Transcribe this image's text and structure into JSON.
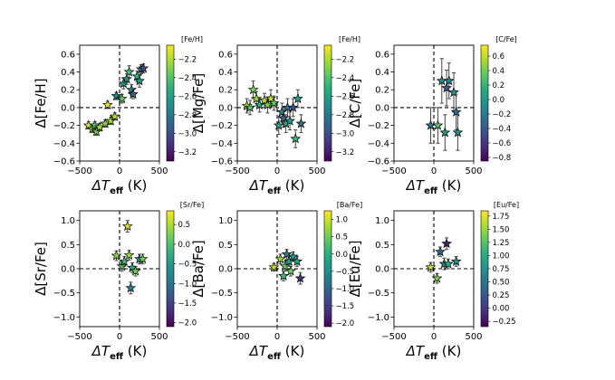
{
  "figure": {
    "colormap": "viridis"
  },
  "chart_data": [
    {
      "id": "fe_h",
      "type": "scatter",
      "ylabel_pre": "Δ[Fe/H]",
      "ylabel_main": "Δ[Fe/H]",
      "xlabel_main": "ΔT",
      "xlabel_sub": "eff",
      "xlabel_unit": " (K)",
      "xlim": [
        -500,
        500
      ],
      "ylim": [
        -0.6,
        0.7
      ],
      "xticks": [
        -500,
        0,
        500
      ],
      "yticks": [
        -0.6,
        -0.4,
        -0.2,
        0.0,
        0.2,
        0.4,
        0.6
      ],
      "ytick_labels": [
        "−0.6",
        "−0.4",
        "−0.2",
        "0.0",
        "0.2",
        "0.4",
        "0.6"
      ],
      "xtick_labels": [
        "−500",
        "0",
        "500"
      ],
      "colorbar": {
        "title": "[Fe/H]",
        "range": [
          -3.3,
          -2.05
        ],
        "ticks": [
          -3.2,
          -3.0,
          -2.8,
          -2.6,
          -2.4,
          -2.2
        ],
        "tick_labels": [
          "−3.2",
          "−3.0",
          "−2.8",
          "−2.6",
          "−2.4",
          "−2.2"
        ]
      },
      "points": [
        {
          "x": -390,
          "y": -0.2,
          "err": 0.04,
          "c": -2.15
        },
        {
          "x": -340,
          "y": -0.24,
          "err": 0.04,
          "c": -2.25
        },
        {
          "x": -310,
          "y": -0.2,
          "err": 0.04,
          "c": -2.4
        },
        {
          "x": -290,
          "y": -0.27,
          "err": 0.04,
          "c": -2.3
        },
        {
          "x": -250,
          "y": -0.22,
          "err": 0.04,
          "c": -2.2
        },
        {
          "x": -180,
          "y": -0.18,
          "err": 0.04,
          "c": -2.3
        },
        {
          "x": -150,
          "y": 0.03,
          "err": 0.04,
          "c": -2.1
        },
        {
          "x": -110,
          "y": -0.15,
          "err": 0.04,
          "c": -2.2
        },
        {
          "x": -60,
          "y": -0.1,
          "err": 0.04,
          "c": -2.2
        },
        {
          "x": -40,
          "y": 0.13,
          "err": 0.04,
          "c": -2.75
        },
        {
          "x": 30,
          "y": 0.1,
          "err": 0.05,
          "c": -2.35
        },
        {
          "x": 50,
          "y": 0.27,
          "err": 0.06,
          "c": -2.6
        },
        {
          "x": 90,
          "y": 0.32,
          "err": 0.06,
          "c": -2.65
        },
        {
          "x": 120,
          "y": 0.4,
          "err": 0.07,
          "c": -2.45
        },
        {
          "x": 150,
          "y": 0.2,
          "err": 0.06,
          "c": -2.7
        },
        {
          "x": 170,
          "y": 0.15,
          "err": 0.05,
          "c": -2.9
        },
        {
          "x": 220,
          "y": 0.35,
          "err": 0.06,
          "c": -2.5
        },
        {
          "x": 250,
          "y": 0.3,
          "err": 0.07,
          "c": -2.6
        },
        {
          "x": 270,
          "y": 0.43,
          "err": 0.05,
          "c": -2.85
        },
        {
          "x": 300,
          "y": 0.44,
          "err": 0.05,
          "c": -3.0
        }
      ]
    },
    {
      "id": "mg_fe",
      "type": "scatter",
      "ylabel_main": "Δ[Mg/Fe]",
      "xlabel_main": "ΔT",
      "xlabel_sub": "eff",
      "xlabel_unit": " (K)",
      "xlim": [
        -500,
        500
      ],
      "ylim": [
        -0.6,
        0.7
      ],
      "xticks": [
        -500,
        0,
        500
      ],
      "yticks": [
        -0.6,
        -0.4,
        -0.2,
        0.0,
        0.2,
        0.4,
        0.6
      ],
      "ytick_labels": [
        "−0.6",
        "−0.4",
        "−0.2",
        "0.0",
        "0.2",
        "0.4",
        "0.6"
      ],
      "xtick_labels": [
        "−500",
        "0",
        "500"
      ],
      "colorbar": {
        "title": "[Fe/H]",
        "range": [
          -3.3,
          -2.05
        ],
        "ticks": [
          -3.2,
          -3.0,
          -2.8,
          -2.6,
          -2.4,
          -2.2
        ],
        "tick_labels": [
          "−3.2",
          "−3.0",
          "−2.8",
          "−2.6",
          "−2.4",
          "−2.2"
        ]
      },
      "points": [
        {
          "x": -380,
          "y": 0.02,
          "err": 0.08,
          "c": -2.2
        },
        {
          "x": -340,
          "y": 0.0,
          "err": 0.08,
          "c": -2.4
        },
        {
          "x": -300,
          "y": 0.2,
          "err": 0.1,
          "c": -2.3
        },
        {
          "x": -260,
          "y": 0.1,
          "err": 0.08,
          "c": -2.25
        },
        {
          "x": -220,
          "y": 0.03,
          "err": 0.08,
          "c": -2.5
        },
        {
          "x": -160,
          "y": 0.08,
          "err": 0.08,
          "c": -2.2
        },
        {
          "x": -120,
          "y": 0.03,
          "err": 0.09,
          "c": -2.3
        },
        {
          "x": -80,
          "y": 0.1,
          "err": 0.1,
          "c": -2.15
        },
        {
          "x": -40,
          "y": 0.05,
          "err": 0.08,
          "c": -2.35
        },
        {
          "x": 20,
          "y": -0.2,
          "err": 0.1,
          "c": -2.6
        },
        {
          "x": 60,
          "y": -0.05,
          "err": 0.1,
          "c": -2.75
        },
        {
          "x": 80,
          "y": -0.12,
          "err": 0.1,
          "c": -2.9
        },
        {
          "x": 110,
          "y": -0.18,
          "err": 0.1,
          "c": -2.55
        },
        {
          "x": 130,
          "y": 0.0,
          "err": 0.1,
          "c": -2.8
        },
        {
          "x": 160,
          "y": -0.15,
          "err": 0.1,
          "c": -2.65
        },
        {
          "x": 200,
          "y": 0.0,
          "err": 0.1,
          "c": -3.0
        },
        {
          "x": 230,
          "y": -0.35,
          "err": 0.1,
          "c": -2.45
        },
        {
          "x": 260,
          "y": 0.1,
          "err": 0.1,
          "c": -2.6
        },
        {
          "x": 300,
          "y": -0.18,
          "err": 0.1,
          "c": -2.85
        }
      ]
    },
    {
      "id": "c_fe",
      "type": "scatter",
      "ylabel_main": "Δ[C/Fe]",
      "xlabel_main": "ΔT",
      "xlabel_sub": "eff",
      "xlabel_unit": " (K)",
      "xlim": [
        -500,
        500
      ],
      "ylim": [
        -0.6,
        0.7
      ],
      "xticks": [
        -500,
        0,
        500
      ],
      "yticks": [
        -0.6,
        -0.4,
        -0.2,
        0.0,
        0.2,
        0.4,
        0.6
      ],
      "ytick_labels": [
        "−0.6",
        "−0.4",
        "−0.2",
        "0.0",
        "0.2",
        "0.4",
        "0.6"
      ],
      "xtick_labels": [
        "−500",
        "0",
        "500"
      ],
      "colorbar": {
        "title": "[C/Fe]",
        "range": [
          -0.85,
          0.75
        ],
        "ticks": [
          -0.8,
          -0.6,
          -0.4,
          -0.2,
          0.0,
          0.2,
          0.4,
          0.6
        ],
        "tick_labels": [
          "−0.8",
          "−0.6",
          "−0.4",
          "−0.2",
          "0.0",
          "0.2",
          "0.4",
          "0.6"
        ]
      },
      "points": [
        {
          "x": -40,
          "y": -0.2,
          "err": 0.2,
          "c": -0.2
        },
        {
          "x": 50,
          "y": -0.2,
          "err": 0.2,
          "c": 0.3
        },
        {
          "x": 100,
          "y": 0.3,
          "err": 0.25,
          "c": -0.1
        },
        {
          "x": 140,
          "y": -0.28,
          "err": 0.2,
          "c": 0.0
        },
        {
          "x": 160,
          "y": 0.22,
          "err": 0.2,
          "c": -0.4
        },
        {
          "x": 190,
          "y": 0.3,
          "err": 0.2,
          "c": -0.1
        },
        {
          "x": 250,
          "y": 0.17,
          "err": 0.22,
          "c": -0.05
        },
        {
          "x": 280,
          "y": -0.05,
          "err": 0.2,
          "c": -0.3
        },
        {
          "x": 300,
          "y": -0.28,
          "err": 0.2,
          "c": -0.05
        }
      ]
    },
    {
      "id": "sr_fe",
      "type": "scatter",
      "ylabel_main": "Δ[Sr/Fe]",
      "xlabel_main": "ΔT",
      "xlabel_sub": "eff",
      "xlabel_unit": " (K)",
      "xlim": [
        -500,
        500
      ],
      "ylim": [
        -1.2,
        1.2
      ],
      "xticks": [
        -500,
        0,
        500
      ],
      "yticks": [
        -1.0,
        -0.5,
        0.0,
        0.5,
        1.0
      ],
      "ytick_labels": [
        "−1.0",
        "−0.5",
        "0.0",
        "0.5",
        "1.0"
      ],
      "xtick_labels": [
        "−500",
        "0",
        "500"
      ],
      "colorbar": {
        "title": "[Sr/Fe]",
        "range": [
          -2.1,
          0.85
        ],
        "ticks": [
          -2.0,
          -1.5,
          -1.0,
          -0.5,
          0.0,
          0.5
        ],
        "tick_labels": [
          "−2.0",
          "−1.5",
          "−1.0",
          "−0.5",
          "0.0",
          "0.5"
        ]
      },
      "points": [
        {
          "x": -40,
          "y": 0.27,
          "err": 0.1,
          "c": 0.3
        },
        {
          "x": 30,
          "y": 0.05,
          "err": 0.1,
          "c": 0.1
        },
        {
          "x": 60,
          "y": 0.15,
          "err": 0.1,
          "c": -0.1
        },
        {
          "x": 100,
          "y": 0.88,
          "err": 0.12,
          "c": 0.7
        },
        {
          "x": 120,
          "y": 0.28,
          "err": 0.1,
          "c": 0.4
        },
        {
          "x": 140,
          "y": -0.4,
          "err": 0.12,
          "c": -0.8
        },
        {
          "x": 160,
          "y": 0.02,
          "err": 0.1,
          "c": -0.3
        },
        {
          "x": 200,
          "y": -0.05,
          "err": 0.1,
          "c": 0.2
        },
        {
          "x": 250,
          "y": 0.2,
          "err": 0.1,
          "c": -0.5
        },
        {
          "x": 290,
          "y": 0.2,
          "err": 0.1,
          "c": 0.2
        }
      ]
    },
    {
      "id": "ba_fe",
      "type": "scatter",
      "ylabel_main": "Δ[Ba/Fe]",
      "xlabel_main": "ΔT",
      "xlabel_sub": "eff",
      "xlabel_unit": " (K)",
      "xlim": [
        -500,
        500
      ],
      "ylim": [
        -1.2,
        1.2
      ],
      "xticks": [
        -500,
        0,
        500
      ],
      "yticks": [
        -1.0,
        -0.5,
        0.0,
        0.5,
        1.0
      ],
      "ytick_labels": [
        "−1.0",
        "−0.5",
        "0.0",
        "0.5",
        "1.0"
      ],
      "xtick_labels": [
        "−500",
        "0",
        "500"
      ],
      "colorbar": {
        "title": "[Ba/Fe]",
        "range": [
          -2.1,
          1.25
        ],
        "ticks": [
          -2.0,
          -1.5,
          -1.0,
          -0.5,
          0.0,
          0.5,
          1.0
        ],
        "tick_labels": [
          "−2.0",
          "−1.5",
          "−1.0",
          "−0.5",
          "0.0",
          "0.5",
          "1.0"
        ]
      },
      "points": [
        {
          "x": -40,
          "y": 0.03,
          "err": 0.08,
          "c": 0.9
        },
        {
          "x": 40,
          "y": 0.2,
          "err": 0.1,
          "c": 0.7
        },
        {
          "x": 80,
          "y": -0.15,
          "err": 0.1,
          "c": 0.2
        },
        {
          "x": 100,
          "y": 0.05,
          "err": 0.1,
          "c": 0.4
        },
        {
          "x": 120,
          "y": 0.3,
          "err": 0.1,
          "c": -0.6
        },
        {
          "x": 150,
          "y": 0.15,
          "err": 0.1,
          "c": -0.2
        },
        {
          "x": 170,
          "y": -0.05,
          "err": 0.1,
          "c": 0.5
        },
        {
          "x": 200,
          "y": 0.25,
          "err": 0.1,
          "c": -0.4
        },
        {
          "x": 250,
          "y": 0.15,
          "err": 0.1,
          "c": -0.1
        },
        {
          "x": 290,
          "y": -0.2,
          "err": 0.12,
          "c": -1.6
        }
      ]
    },
    {
      "id": "eu_fe",
      "type": "scatter",
      "ylabel_main": "Δ[Eu/Fe]",
      "xlabel_main": "ΔT",
      "xlabel_sub": "eff",
      "xlabel_unit": " (K)",
      "xlim": [
        -500,
        500
      ],
      "ylim": [
        -1.2,
        1.2
      ],
      "xticks": [
        -500,
        0,
        500
      ],
      "yticks": [
        -1.0,
        -0.5,
        0.0,
        0.5,
        1.0
      ],
      "ytick_labels": [
        "−1.0",
        "−0.5",
        "0.0",
        "0.5",
        "1.0"
      ],
      "xtick_labels": [
        "−500",
        "0",
        "500"
      ],
      "colorbar": {
        "title": "[Eu/Fe]",
        "range": [
          -0.35,
          1.85
        ],
        "ticks": [
          -0.25,
          0.0,
          0.25,
          0.5,
          0.75,
          1.0,
          1.25,
          1.5,
          1.75
        ],
        "tick_labels": [
          "−0.25",
          "0.00",
          "0.25",
          "0.50",
          "0.75",
          "1.00",
          "1.25",
          "1.50",
          "1.75"
        ]
      },
      "points": [
        {
          "x": -40,
          "y": 0.03,
          "err": 0.1,
          "c": 1.7
        },
        {
          "x": 40,
          "y": -0.2,
          "err": 0.1,
          "c": 1.4
        },
        {
          "x": 80,
          "y": 0.35,
          "err": 0.1,
          "c": 0.4
        },
        {
          "x": 130,
          "y": 0.1,
          "err": 0.12,
          "c": 0.6
        },
        {
          "x": 160,
          "y": 0.52,
          "err": 0.12,
          "c": -0.15
        },
        {
          "x": 180,
          "y": 0.1,
          "err": 0.1,
          "c": 1.0
        },
        {
          "x": 280,
          "y": 0.15,
          "err": 0.1,
          "c": 0.8
        }
      ]
    }
  ]
}
